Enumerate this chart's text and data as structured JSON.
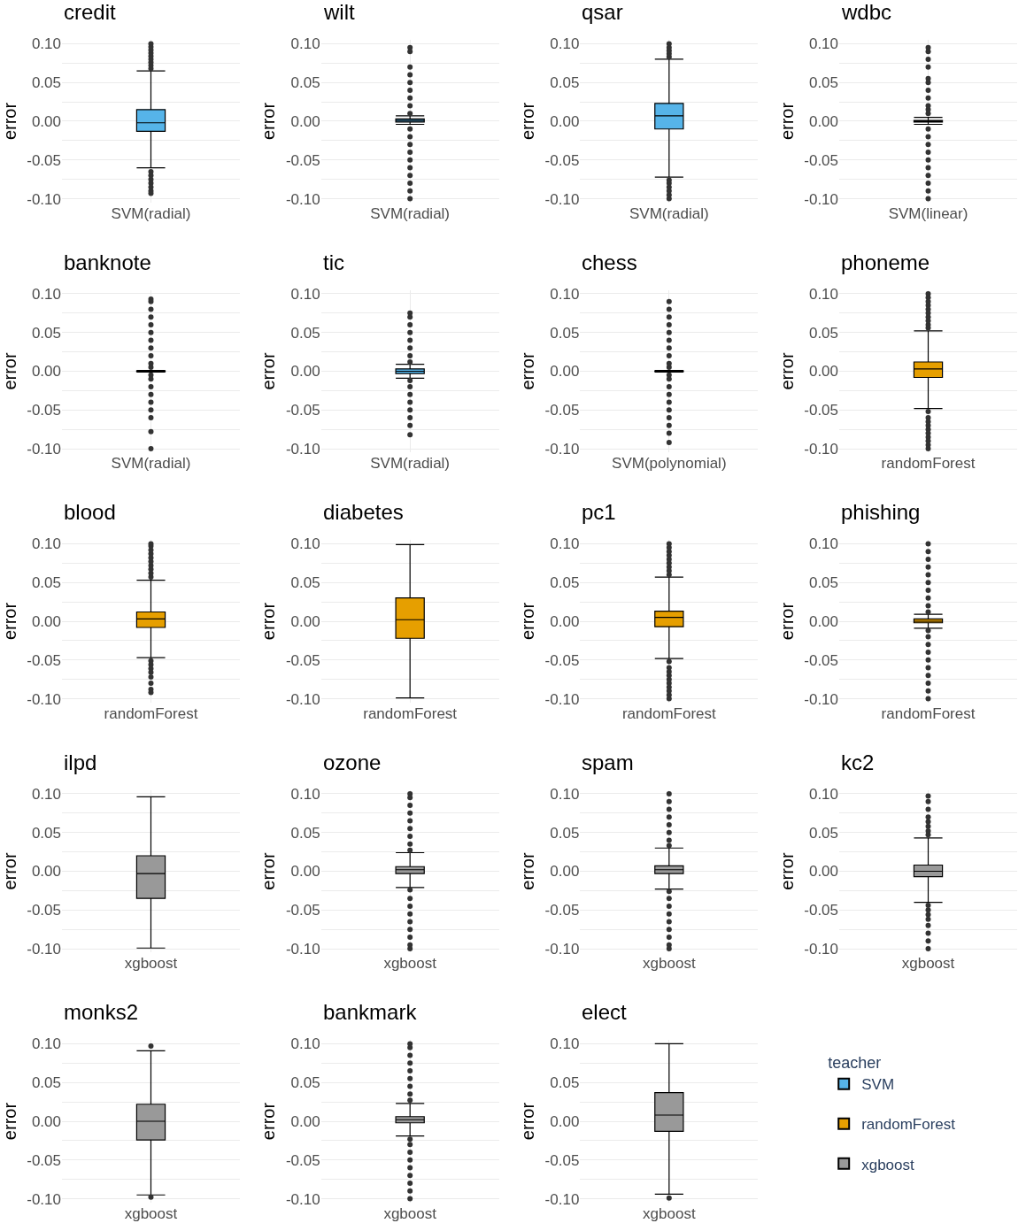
{
  "chart_data": [
    {
      "type": "box",
      "title": "credit",
      "ylabel": "error",
      "categories": [
        "SVM(radial)"
      ],
      "ylim": [
        -0.105,
        0.105
      ],
      "yticks": [
        {
          "value": -0.1,
          "label": "-0.10"
        },
        {
          "value": -0.075,
          "label": null
        },
        {
          "value": -0.05,
          "label": "-0.05"
        },
        {
          "value": -0.025,
          "label": null
        },
        {
          "value": 0,
          "label": "0.00"
        },
        {
          "value": 0.025,
          "label": null
        },
        {
          "value": 0.05,
          "label": "0.05"
        },
        {
          "value": 0.075,
          "label": null
        },
        {
          "value": 0.1,
          "label": "0.10"
        }
      ],
      "grid": true,
      "series": [
        {
          "name": "SVM",
          "color": "#56b4e9",
          "boxes": [
            {
              "low": -0.06,
              "q1": -0.013,
              "median": -0.002,
              "q3": 0.015,
              "high": 0.065,
              "outliers": [
                0.068,
                0.072,
                0.076,
                0.08,
                0.084,
                0.088,
                0.092,
                0.096,
                0.1,
                -0.065,
                -0.07,
                -0.075,
                -0.08,
                -0.085,
                -0.09,
                -0.093
              ]
            }
          ]
        }
      ]
    },
    {
      "type": "box",
      "title": "wilt",
      "ylabel": "error",
      "categories": [
        "SVM(radial)"
      ],
      "ylim": [
        -0.105,
        0.105
      ],
      "yticks": [
        {
          "value": -0.1,
          "label": "-0.10"
        },
        {
          "value": -0.075,
          "label": null
        },
        {
          "value": -0.05,
          "label": "-0.05"
        },
        {
          "value": -0.025,
          "label": null
        },
        {
          "value": 0,
          "label": "0.00"
        },
        {
          "value": 0.025,
          "label": null
        },
        {
          "value": 0.05,
          "label": "0.05"
        },
        {
          "value": 0.075,
          "label": null
        },
        {
          "value": 0.1,
          "label": "0.10"
        }
      ],
      "grid": true,
      "series": [
        {
          "name": "SVM",
          "color": "#56b4e9",
          "boxes": [
            {
              "low": -0.004,
              "q1": -0.001,
              "median": 0.001,
              "q3": 0.003,
              "high": 0.007,
              "outliers": [
                0.01,
                0.02,
                0.03,
                0.04,
                0.05,
                0.06,
                0.07,
                0.09,
                0.095,
                -0.01,
                -0.02,
                -0.03,
                -0.04,
                -0.05,
                -0.06,
                -0.07,
                -0.08,
                -0.09,
                -0.1
              ]
            }
          ]
        }
      ]
    },
    {
      "type": "box",
      "title": "qsar",
      "ylabel": "error",
      "categories": [
        "SVM(radial)"
      ],
      "ylim": [
        -0.105,
        0.105
      ],
      "yticks": [
        {
          "value": -0.1,
          "label": "-0.10"
        },
        {
          "value": -0.075,
          "label": null
        },
        {
          "value": -0.05,
          "label": "-0.05"
        },
        {
          "value": -0.025,
          "label": null
        },
        {
          "value": 0,
          "label": "0.00"
        },
        {
          "value": 0.025,
          "label": null
        },
        {
          "value": 0.05,
          "label": "0.05"
        },
        {
          "value": 0.075,
          "label": null
        },
        {
          "value": 0.1,
          "label": "0.10"
        }
      ],
      "grid": true,
      "series": [
        {
          "name": "SVM",
          "color": "#56b4e9",
          "boxes": [
            {
              "low": -0.072,
              "q1": -0.01,
              "median": 0.007,
              "q3": 0.023,
              "high": 0.08,
              "outliers": [
                0.083,
                0.087,
                0.091,
                0.095,
                0.1,
                -0.076,
                -0.08,
                -0.085,
                -0.09,
                -0.095,
                -0.1
              ]
            }
          ]
        }
      ]
    },
    {
      "type": "box",
      "title": "wdbc",
      "ylabel": "error",
      "categories": [
        "SVM(linear)"
      ],
      "ylim": [
        -0.105,
        0.105
      ],
      "yticks": [
        {
          "value": -0.1,
          "label": "-0.10"
        },
        {
          "value": -0.075,
          "label": null
        },
        {
          "value": -0.05,
          "label": "-0.05"
        },
        {
          "value": -0.025,
          "label": null
        },
        {
          "value": 0,
          "label": "0.00"
        },
        {
          "value": 0.025,
          "label": null
        },
        {
          "value": 0.05,
          "label": "0.05"
        },
        {
          "value": 0.075,
          "label": null
        },
        {
          "value": 0.1,
          "label": "0.10"
        }
      ],
      "grid": true,
      "series": [
        {
          "name": "SVM",
          "color": "#56b4e9",
          "boxes": [
            {
              "low": -0.004,
              "q1": -0.001,
              "median": 0,
              "q3": 0.001,
              "high": 0.005,
              "outliers": [
                0.01,
                0.015,
                0.02,
                0.03,
                0.04,
                0.05,
                0.055,
                0.07,
                0.08,
                0.09,
                0.095,
                -0.01,
                -0.02,
                -0.03,
                -0.04,
                -0.05,
                -0.06,
                -0.07,
                -0.08,
                -0.09,
                -0.1
              ]
            }
          ]
        }
      ]
    },
    {
      "type": "box",
      "title": "banknote",
      "ylabel": "error",
      "categories": [
        "SVM(radial)"
      ],
      "ylim": [
        -0.105,
        0.105
      ],
      "yticks": [
        {
          "value": -0.1,
          "label": "-0.10"
        },
        {
          "value": -0.075,
          "label": null
        },
        {
          "value": -0.05,
          "label": "-0.05"
        },
        {
          "value": -0.025,
          "label": null
        },
        {
          "value": 0,
          "label": "0.00"
        },
        {
          "value": 0.025,
          "label": null
        },
        {
          "value": 0.05,
          "label": "0.05"
        },
        {
          "value": 0.075,
          "label": null
        },
        {
          "value": 0.1,
          "label": "0.10"
        }
      ],
      "grid": true,
      "series": [
        {
          "name": "SVM",
          "color": "#56b4e9",
          "boxes": [
            {
              "low": -0.001,
              "q1": -0.0005,
              "median": 0,
              "q3": 0.0005,
              "high": 0.001,
              "outliers": [
                0.005,
                0.01,
                0.02,
                0.03,
                0.04,
                0.05,
                0.06,
                0.07,
                0.08,
                0.09,
                0.093,
                -0.005,
                -0.01,
                -0.02,
                -0.03,
                -0.04,
                -0.05,
                -0.06,
                -0.078,
                -0.1
              ]
            }
          ]
        }
      ]
    },
    {
      "type": "box",
      "title": "tic",
      "ylabel": "error",
      "categories": [
        "SVM(radial)"
      ],
      "ylim": [
        -0.105,
        0.105
      ],
      "yticks": [
        {
          "value": -0.1,
          "label": "-0.10"
        },
        {
          "value": -0.075,
          "label": null
        },
        {
          "value": -0.05,
          "label": "-0.05"
        },
        {
          "value": -0.025,
          "label": null
        },
        {
          "value": 0,
          "label": "0.00"
        },
        {
          "value": 0.025,
          "label": null
        },
        {
          "value": 0.05,
          "label": "0.05"
        },
        {
          "value": 0.075,
          "label": null
        },
        {
          "value": 0.1,
          "label": "0.10"
        }
      ],
      "grid": true,
      "series": [
        {
          "name": "SVM",
          "color": "#56b4e9",
          "boxes": [
            {
              "low": -0.009,
              "q1": -0.003,
              "median": 0,
              "q3": 0.003,
              "high": 0.009,
              "outliers": [
                0.012,
                0.02,
                0.03,
                0.04,
                0.05,
                0.06,
                0.07,
                0.075,
                -0.012,
                -0.02,
                -0.03,
                -0.04,
                -0.05,
                -0.06,
                -0.07,
                -0.082
              ]
            }
          ]
        }
      ]
    },
    {
      "type": "box",
      "title": "chess",
      "ylabel": "error",
      "categories": [
        "SVM(polynomial)"
      ],
      "ylim": [
        -0.105,
        0.105
      ],
      "yticks": [
        {
          "value": -0.1,
          "label": "-0.10"
        },
        {
          "value": -0.075,
          "label": null
        },
        {
          "value": -0.05,
          "label": "-0.05"
        },
        {
          "value": -0.025,
          "label": null
        },
        {
          "value": 0,
          "label": "0.00"
        },
        {
          "value": 0.025,
          "label": null
        },
        {
          "value": 0.05,
          "label": "0.05"
        },
        {
          "value": 0.075,
          "label": null
        },
        {
          "value": 0.1,
          "label": "0.10"
        }
      ],
      "grid": true,
      "series": [
        {
          "name": "SVM",
          "color": "#56b4e9",
          "boxes": [
            {
              "low": -0.001,
              "q1": -0.0005,
              "median": 0,
              "q3": 0.0005,
              "high": 0.001,
              "outliers": [
                0.005,
                0.01,
                0.02,
                0.03,
                0.04,
                0.05,
                0.06,
                0.07,
                0.08,
                0.09,
                -0.005,
                -0.01,
                -0.02,
                -0.03,
                -0.04,
                -0.05,
                -0.06,
                -0.07,
                -0.08,
                -0.092
              ]
            }
          ]
        }
      ]
    },
    {
      "type": "box",
      "title": "phoneme",
      "ylabel": "error",
      "categories": [
        "randomForest"
      ],
      "ylim": [
        -0.105,
        0.105
      ],
      "yticks": [
        {
          "value": -0.1,
          "label": "-0.10"
        },
        {
          "value": -0.075,
          "label": null
        },
        {
          "value": -0.05,
          "label": "-0.05"
        },
        {
          "value": -0.025,
          "label": null
        },
        {
          "value": 0,
          "label": "0.00"
        },
        {
          "value": 0.025,
          "label": null
        },
        {
          "value": 0.05,
          "label": "0.05"
        },
        {
          "value": 0.075,
          "label": null
        },
        {
          "value": 0.1,
          "label": "0.10"
        }
      ],
      "grid": true,
      "series": [
        {
          "name": "randomForest",
          "color": "#e69f00",
          "boxes": [
            {
              "low": -0.048,
              "q1": -0.008,
              "median": 0.003,
              "q3": 0.012,
              "high": 0.052,
              "outliers": [
                0.056,
                0.06,
                0.065,
                0.07,
                0.075,
                0.08,
                0.085,
                0.09,
                0.095,
                0.1,
                -0.052,
                -0.06,
                -0.065,
                -0.07,
                -0.075,
                -0.08,
                -0.085,
                -0.09,
                -0.095,
                -0.1
              ]
            }
          ]
        }
      ]
    },
    {
      "type": "box",
      "title": "blood",
      "ylabel": "error",
      "categories": [
        "randomForest"
      ],
      "ylim": [
        -0.105,
        0.105
      ],
      "yticks": [
        {
          "value": -0.1,
          "label": "-0.10"
        },
        {
          "value": -0.075,
          "label": null
        },
        {
          "value": -0.05,
          "label": "-0.05"
        },
        {
          "value": -0.025,
          "label": null
        },
        {
          "value": 0,
          "label": "0.00"
        },
        {
          "value": 0.025,
          "label": null
        },
        {
          "value": 0.05,
          "label": "0.05"
        },
        {
          "value": 0.075,
          "label": null
        },
        {
          "value": 0.1,
          "label": "0.10"
        }
      ],
      "grid": true,
      "series": [
        {
          "name": "randomForest",
          "color": "#e69f00",
          "boxes": [
            {
              "low": -0.047,
              "q1": -0.008,
              "median": 0.003,
              "q3": 0.012,
              "high": 0.053,
              "outliers": [
                0.057,
                0.062,
                0.067,
                0.072,
                0.077,
                0.082,
                0.087,
                0.092,
                0.097,
                0.1,
                -0.051,
                -0.056,
                -0.061,
                -0.066,
                -0.072,
                -0.08,
                -0.088,
                -0.092
              ]
            }
          ]
        }
      ]
    },
    {
      "type": "box",
      "title": "diabetes",
      "ylabel": "error",
      "categories": [
        "randomForest"
      ],
      "ylim": [
        -0.105,
        0.105
      ],
      "yticks": [
        {
          "value": -0.1,
          "label": "-0.10"
        },
        {
          "value": -0.075,
          "label": null
        },
        {
          "value": -0.05,
          "label": "-0.05"
        },
        {
          "value": -0.025,
          "label": null
        },
        {
          "value": 0,
          "label": "0.00"
        },
        {
          "value": 0.025,
          "label": null
        },
        {
          "value": 0.05,
          "label": "0.05"
        },
        {
          "value": 0.075,
          "label": null
        },
        {
          "value": 0.1,
          "label": "0.10"
        }
      ],
      "grid": true,
      "series": [
        {
          "name": "randomForest",
          "color": "#e69f00",
          "boxes": [
            {
              "low": -0.099,
              "q1": -0.022,
              "median": 0.002,
              "q3": 0.03,
              "high": 0.099
            }
          ]
        }
      ]
    },
    {
      "type": "box",
      "title": "pc1",
      "ylabel": "error",
      "categories": [
        "randomForest"
      ],
      "ylim": [
        -0.105,
        0.105
      ],
      "yticks": [
        {
          "value": -0.1,
          "label": "-0.10"
        },
        {
          "value": -0.075,
          "label": null
        },
        {
          "value": -0.05,
          "label": "-0.05"
        },
        {
          "value": -0.025,
          "label": null
        },
        {
          "value": 0,
          "label": "0.00"
        },
        {
          "value": 0.025,
          "label": null
        },
        {
          "value": 0.05,
          "label": "0.05"
        },
        {
          "value": 0.075,
          "label": null
        },
        {
          "value": 0.1,
          "label": "0.10"
        }
      ],
      "grid": true,
      "series": [
        {
          "name": "randomForest",
          "color": "#e69f00",
          "boxes": [
            {
              "low": -0.048,
              "q1": -0.007,
              "median": 0.005,
              "q3": 0.013,
              "high": 0.057,
              "outliers": [
                0.06,
                0.065,
                0.07,
                0.075,
                0.08,
                0.085,
                0.09,
                0.095,
                0.1,
                -0.052,
                -0.06,
                -0.065,
                -0.07,
                -0.075,
                -0.08,
                -0.085,
                -0.09,
                -0.095,
                -0.1
              ]
            }
          ]
        }
      ]
    },
    {
      "type": "box",
      "title": "phishing",
      "ylabel": "error",
      "categories": [
        "randomForest"
      ],
      "ylim": [
        -0.105,
        0.105
      ],
      "yticks": [
        {
          "value": -0.1,
          "label": "-0.10"
        },
        {
          "value": -0.075,
          "label": null
        },
        {
          "value": -0.05,
          "label": "-0.05"
        },
        {
          "value": -0.025,
          "label": null
        },
        {
          "value": 0,
          "label": "0.00"
        },
        {
          "value": 0.025,
          "label": null
        },
        {
          "value": 0.05,
          "label": "0.05"
        },
        {
          "value": 0.075,
          "label": null
        },
        {
          "value": 0.1,
          "label": "0.10"
        }
      ],
      "grid": true,
      "series": [
        {
          "name": "randomForest",
          "color": "#e69f00",
          "boxes": [
            {
              "low": -0.009,
              "q1": -0.002,
              "median": 0,
              "q3": 0.003,
              "high": 0.009,
              "outliers": [
                0.012,
                0.02,
                0.03,
                0.04,
                0.05,
                0.06,
                0.07,
                0.08,
                0.09,
                0.1,
                -0.012,
                -0.02,
                -0.03,
                -0.04,
                -0.05,
                -0.06,
                -0.07,
                -0.08,
                -0.09,
                -0.1
              ]
            }
          ]
        }
      ]
    },
    {
      "type": "box",
      "title": "ilpd",
      "ylabel": "error",
      "categories": [
        "xgboost"
      ],
      "ylim": [
        -0.105,
        0.105
      ],
      "yticks": [
        {
          "value": -0.1,
          "label": "-0.10"
        },
        {
          "value": -0.075,
          "label": null
        },
        {
          "value": -0.05,
          "label": "-0.05"
        },
        {
          "value": -0.025,
          "label": null
        },
        {
          "value": 0,
          "label": "0.00"
        },
        {
          "value": 0.025,
          "label": null
        },
        {
          "value": 0.05,
          "label": "0.05"
        },
        {
          "value": 0.075,
          "label": null
        },
        {
          "value": 0.1,
          "label": "0.10"
        }
      ],
      "grid": true,
      "series": [
        {
          "name": "xgboost",
          "color": "#999999",
          "boxes": [
            {
              "low": -0.099,
              "q1": -0.035,
              "median": -0.003,
              "q3": 0.02,
              "high": 0.096
            }
          ]
        }
      ]
    },
    {
      "type": "box",
      "title": "ozone",
      "ylabel": "error",
      "categories": [
        "xgboost"
      ],
      "ylim": [
        -0.105,
        0.105
      ],
      "yticks": [
        {
          "value": -0.1,
          "label": "-0.10"
        },
        {
          "value": -0.075,
          "label": null
        },
        {
          "value": -0.05,
          "label": "-0.05"
        },
        {
          "value": -0.025,
          "label": null
        },
        {
          "value": 0,
          "label": "0.00"
        },
        {
          "value": 0.025,
          "label": null
        },
        {
          "value": 0.05,
          "label": "0.05"
        },
        {
          "value": 0.075,
          "label": null
        },
        {
          "value": 0.1,
          "label": "0.10"
        }
      ],
      "grid": true,
      "series": [
        {
          "name": "xgboost",
          "color": "#999999",
          "boxes": [
            {
              "low": -0.021,
              "q1": -0.003,
              "median": 0.002,
              "q3": 0.006,
              "high": 0.024,
              "outliers": [
                0.027,
                0.035,
                0.045,
                0.055,
                0.065,
                0.075,
                0.085,
                0.095,
                0.1,
                -0.024,
                -0.035,
                -0.045,
                -0.055,
                -0.065,
                -0.075,
                -0.085,
                -0.095,
                -0.1
              ]
            }
          ]
        }
      ]
    },
    {
      "type": "box",
      "title": "spam",
      "ylabel": "error",
      "categories": [
        "xgboost"
      ],
      "ylim": [
        -0.105,
        0.105
      ],
      "yticks": [
        {
          "value": -0.1,
          "label": "-0.10"
        },
        {
          "value": -0.075,
          "label": null
        },
        {
          "value": -0.05,
          "label": "-0.05"
        },
        {
          "value": -0.025,
          "label": null
        },
        {
          "value": 0,
          "label": "0.00"
        },
        {
          "value": 0.025,
          "label": null
        },
        {
          "value": 0.05,
          "label": "0.05"
        },
        {
          "value": 0.075,
          "label": null
        },
        {
          "value": 0.1,
          "label": "0.10"
        }
      ],
      "grid": true,
      "series": [
        {
          "name": "xgboost",
          "color": "#999999",
          "boxes": [
            {
              "low": -0.023,
              "q1": -0.003,
              "median": 0.002,
              "q3": 0.007,
              "high": 0.03,
              "outliers": [
                0.033,
                0.04,
                0.05,
                0.06,
                0.07,
                0.08,
                0.09,
                0.1,
                -0.026,
                -0.035,
                -0.045,
                -0.055,
                -0.065,
                -0.075,
                -0.085,
                -0.095,
                -0.1
              ]
            }
          ]
        }
      ]
    },
    {
      "type": "box",
      "title": "kc2",
      "ylabel": "error",
      "categories": [
        "xgboost"
      ],
      "ylim": [
        -0.105,
        0.105
      ],
      "yticks": [
        {
          "value": -0.1,
          "label": "-0.10"
        },
        {
          "value": -0.075,
          "label": null
        },
        {
          "value": -0.05,
          "label": "-0.05"
        },
        {
          "value": -0.025,
          "label": null
        },
        {
          "value": 0,
          "label": "0.00"
        },
        {
          "value": 0.025,
          "label": null
        },
        {
          "value": 0.05,
          "label": "0.05"
        },
        {
          "value": 0.075,
          "label": null
        },
        {
          "value": 0.1,
          "label": "0.10"
        }
      ],
      "grid": true,
      "series": [
        {
          "name": "xgboost",
          "color": "#999999",
          "boxes": [
            {
              "low": -0.04,
              "q1": -0.007,
              "median": 0,
              "q3": 0.008,
              "high": 0.043,
              "outliers": [
                0.047,
                0.052,
                0.058,
                0.064,
                0.07,
                0.08,
                0.09,
                0.097,
                -0.044,
                -0.05,
                -0.056,
                -0.062,
                -0.07,
                -0.08,
                -0.09,
                -0.1
              ]
            }
          ]
        }
      ]
    },
    {
      "type": "box",
      "title": "monks2",
      "ylabel": "error",
      "categories": [
        "xgboost"
      ],
      "ylim": [
        -0.105,
        0.105
      ],
      "yticks": [
        {
          "value": -0.1,
          "label": "-0.10"
        },
        {
          "value": -0.075,
          "label": null
        },
        {
          "value": -0.05,
          "label": "-0.05"
        },
        {
          "value": -0.025,
          "label": null
        },
        {
          "value": 0,
          "label": "0.00"
        },
        {
          "value": 0.025,
          "label": null
        },
        {
          "value": 0.05,
          "label": "0.05"
        },
        {
          "value": 0.075,
          "label": null
        },
        {
          "value": 0.1,
          "label": "0.10"
        }
      ],
      "grid": true,
      "series": [
        {
          "name": "xgboost",
          "color": "#999999",
          "boxes": [
            {
              "low": -0.095,
              "q1": -0.024,
              "median": 0,
              "q3": 0.022,
              "high": 0.091,
              "outliers": [
                0.097,
                -0.098
              ]
            }
          ]
        }
      ]
    },
    {
      "type": "box",
      "title": "bankmark",
      "ylabel": "error",
      "categories": [
        "xgboost"
      ],
      "ylim": [
        -0.105,
        0.105
      ],
      "yticks": [
        {
          "value": -0.1,
          "label": "-0.10"
        },
        {
          "value": -0.075,
          "label": null
        },
        {
          "value": -0.05,
          "label": "-0.05"
        },
        {
          "value": -0.025,
          "label": null
        },
        {
          "value": 0,
          "label": "0.00"
        },
        {
          "value": 0.025,
          "label": null
        },
        {
          "value": 0.05,
          "label": "0.05"
        },
        {
          "value": 0.075,
          "label": null
        },
        {
          "value": 0.1,
          "label": "0.10"
        }
      ],
      "grid": true,
      "series": [
        {
          "name": "xgboost",
          "color": "#999999",
          "boxes": [
            {
              "low": -0.019,
              "q1": -0.002,
              "median": 0.002,
              "q3": 0.006,
              "high": 0.023,
              "outliers": [
                0.027,
                0.035,
                0.045,
                0.055,
                0.065,
                0.075,
                0.085,
                0.095,
                0.1,
                -0.023,
                -0.03,
                -0.04,
                -0.05,
                -0.06,
                -0.07,
                -0.08,
                -0.09,
                -0.1
              ]
            }
          ]
        }
      ]
    },
    {
      "type": "box",
      "title": "elect",
      "ylabel": "error",
      "categories": [
        "xgboost"
      ],
      "ylim": [
        -0.105,
        0.105
      ],
      "yticks": [
        {
          "value": -0.1,
          "label": "-0.10"
        },
        {
          "value": -0.075,
          "label": null
        },
        {
          "value": -0.05,
          "label": "-0.05"
        },
        {
          "value": -0.025,
          "label": null
        },
        {
          "value": 0,
          "label": "0.00"
        },
        {
          "value": 0.025,
          "label": null
        },
        {
          "value": 0.05,
          "label": "0.05"
        },
        {
          "value": 0.075,
          "label": null
        },
        {
          "value": 0.1,
          "label": "0.10"
        }
      ],
      "grid": true,
      "legend": "bottom right",
      "legend_title": "teacher",
      "series": [
        {
          "name": "xgboost",
          "color": "#999999",
          "boxes": [
            {
              "low": -0.094,
              "q1": -0.013,
              "median": 0.008,
              "q3": 0.037,
              "high": 0.1,
              "outliers": [
                -0.099
              ]
            }
          ]
        }
      ]
    }
  ]
}
